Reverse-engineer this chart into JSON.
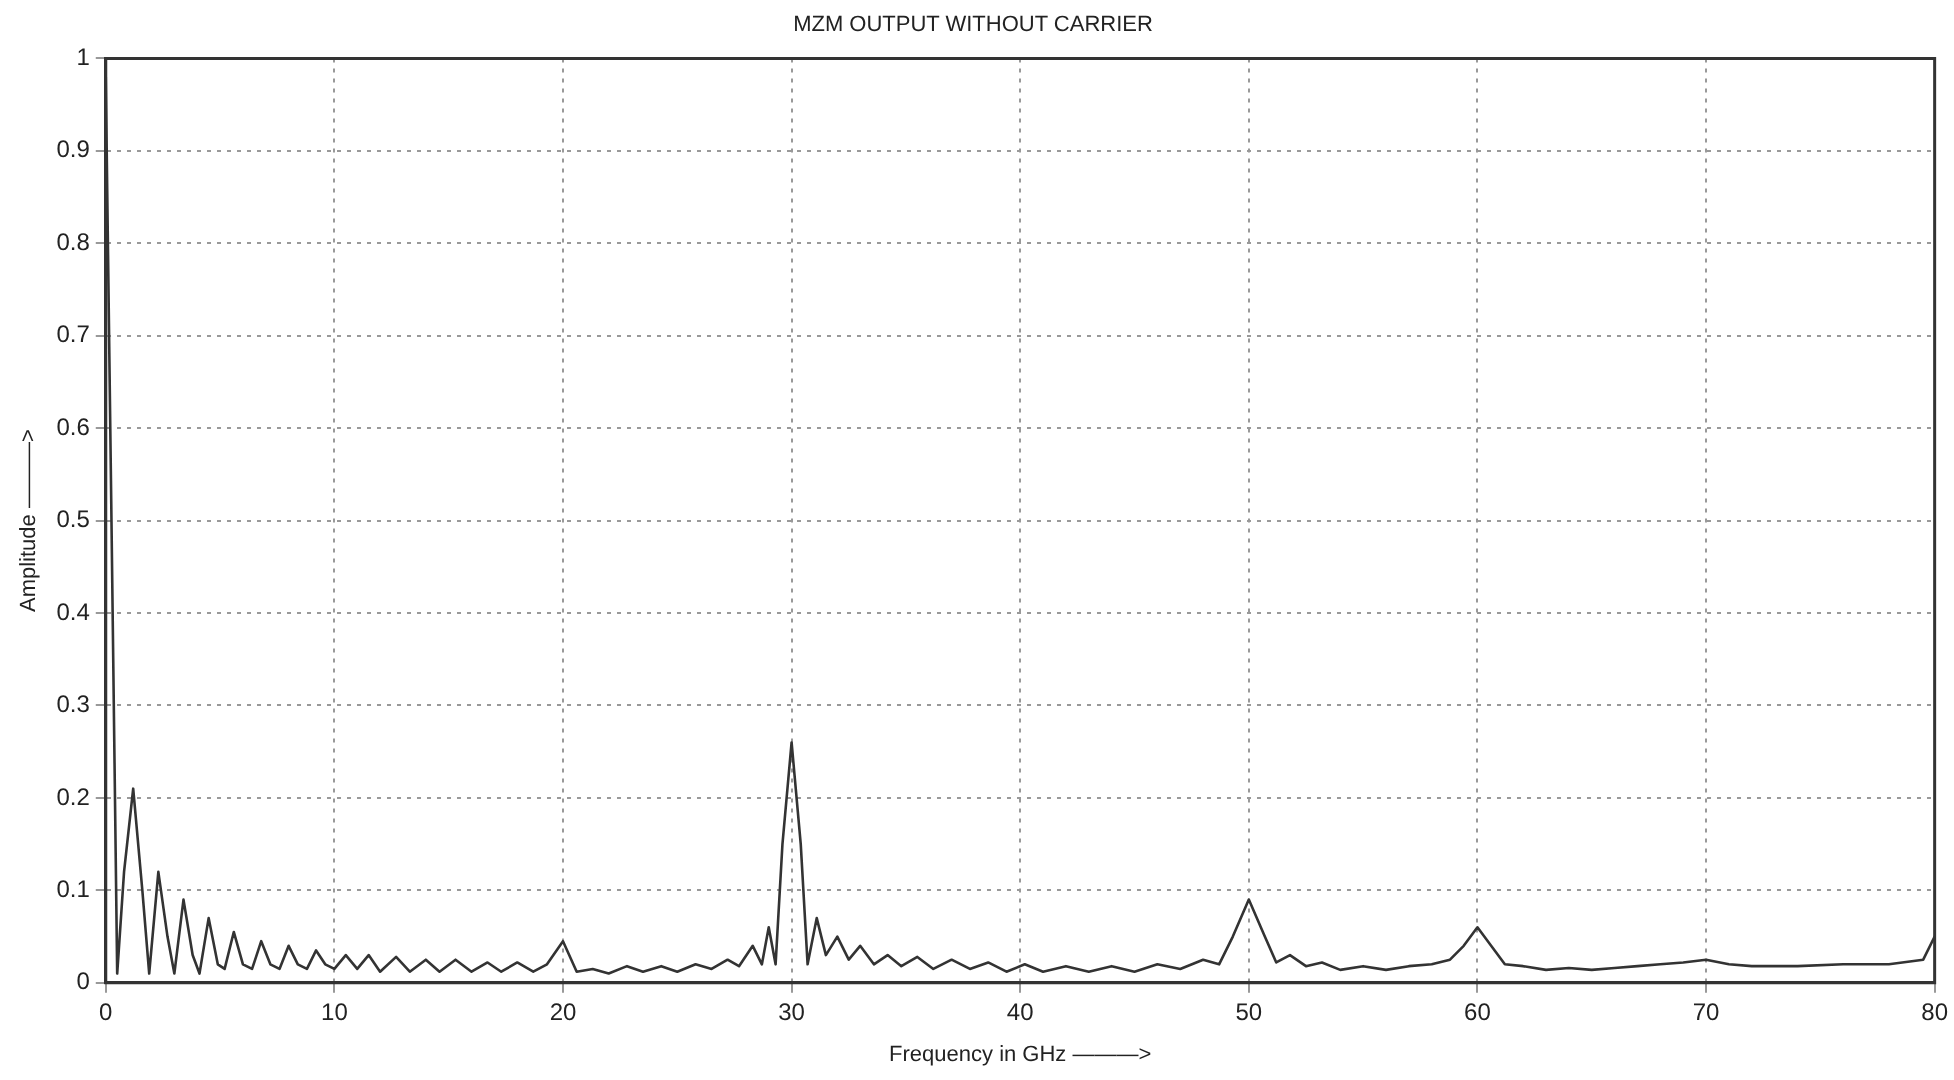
{
  "chart_data": {
    "type": "line",
    "title": "MZM OUTPUT WITHOUT CARRIER",
    "xlabel": "Frequency in GHz ———>",
    "ylabel": "Amplitude ———>",
    "xlim": [
      0,
      80
    ],
    "xticks": [
      0,
      10,
      20,
      30,
      40,
      50,
      60,
      70,
      80
    ],
    "ylim": [
      0,
      1
    ],
    "yticks": [
      0,
      0.1,
      0.2,
      0.3,
      0.4,
      0.5,
      0.6,
      0.7,
      0.8,
      0.9,
      1
    ],
    "grid": true,
    "legend": false,
    "marker": "none",
    "series": [
      {
        "color": "#333333",
        "x": [
          0,
          0.25,
          0.5,
          0.8,
          1.2,
          1.6,
          1.9,
          2.3,
          2.7,
          3.0,
          3.4,
          3.8,
          4.1,
          4.5,
          4.9,
          5.2,
          5.6,
          6.0,
          6.4,
          6.8,
          7.2,
          7.6,
          8.0,
          8.4,
          8.8,
          9.2,
          9.6,
          10,
          10.5,
          11,
          11.5,
          12,
          12.7,
          13.3,
          14,
          14.6,
          15.3,
          16,
          16.7,
          17.3,
          18,
          18.7,
          19.3,
          20,
          20.6,
          21.3,
          22,
          22.8,
          23.5,
          24.3,
          25,
          25.8,
          26.5,
          27.2,
          27.7,
          28.3,
          28.7,
          29.0,
          29.3,
          29.6,
          30,
          30.4,
          30.7,
          31.1,
          31.5,
          32,
          32.5,
          33,
          33.6,
          34.2,
          34.8,
          35.5,
          36.2,
          37,
          37.8,
          38.6,
          39.4,
          40.2,
          41,
          42,
          43,
          44,
          45,
          46,
          47,
          48,
          48.7,
          49.3,
          50,
          50.7,
          51.2,
          51.8,
          52.5,
          53.2,
          54,
          55,
          56,
          57,
          58,
          58.8,
          59.4,
          60,
          60.6,
          61.2,
          62,
          63,
          64,
          65,
          66,
          67,
          68,
          69,
          70,
          71,
          72,
          74,
          76,
          78,
          79.5,
          80
        ],
        "values": [
          0.98,
          0.5,
          0.01,
          0.12,
          0.21,
          0.1,
          0.01,
          0.12,
          0.05,
          0.01,
          0.09,
          0.03,
          0.01,
          0.07,
          0.02,
          0.015,
          0.055,
          0.02,
          0.015,
          0.045,
          0.02,
          0.015,
          0.04,
          0.02,
          0.015,
          0.035,
          0.02,
          0.015,
          0.03,
          0.015,
          0.03,
          0.012,
          0.028,
          0.012,
          0.025,
          0.012,
          0.025,
          0.012,
          0.022,
          0.012,
          0.022,
          0.012,
          0.02,
          0.045,
          0.012,
          0.015,
          0.01,
          0.018,
          0.012,
          0.018,
          0.012,
          0.02,
          0.015,
          0.025,
          0.018,
          0.04,
          0.02,
          0.06,
          0.02,
          0.15,
          0.26,
          0.15,
          0.02,
          0.07,
          0.03,
          0.05,
          0.025,
          0.04,
          0.02,
          0.03,
          0.018,
          0.028,
          0.015,
          0.025,
          0.015,
          0.022,
          0.012,
          0.02,
          0.012,
          0.018,
          0.012,
          0.018,
          0.012,
          0.02,
          0.015,
          0.025,
          0.02,
          0.05,
          0.09,
          0.05,
          0.022,
          0.03,
          0.018,
          0.022,
          0.014,
          0.018,
          0.014,
          0.018,
          0.02,
          0.025,
          0.04,
          0.06,
          0.04,
          0.02,
          0.018,
          0.014,
          0.016,
          0.014,
          0.016,
          0.018,
          0.02,
          0.022,
          0.025,
          0.02,
          0.018,
          0.018,
          0.02,
          0.02,
          0.025,
          0.05
        ]
      }
    ]
  }
}
